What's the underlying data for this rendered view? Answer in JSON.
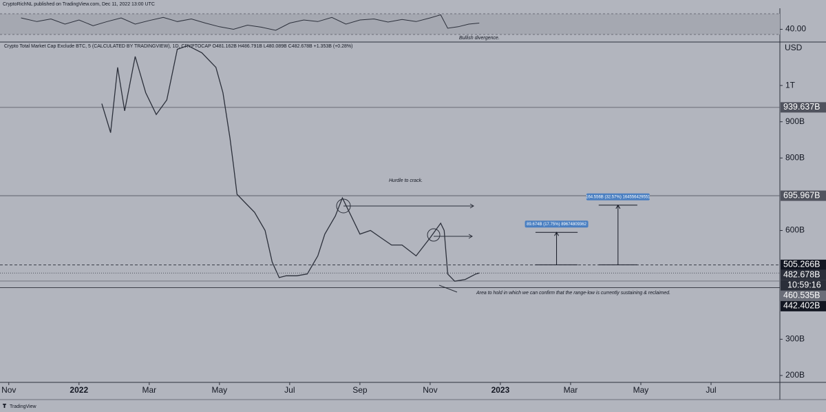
{
  "chart_data": {
    "type": "line",
    "publisher": "CryptoRichNL published on TradingView.com, Dec 11, 2022 13:00 UTC",
    "title": "Crypto Total Market Cap Exclude BTC, 5 (CALCULATED BY TRADINGVIEW), 1D, CRYPTOCAP  O481.162B H486.791B L480.089B C482.678B +1.353B (+0.28%)",
    "currency": "USD",
    "footer": "TradingView",
    "countdown": "10:59:16",
    "annotations": [
      "Bullish divergence.",
      "Hurdle to crack.",
      "Area to hold in which we can confirm that the range-low is currently sustaining & reclaimed."
    ],
    "series": [
      {
        "name": "Crypto Total Market Cap Exclude BTC",
        "color": "#2b2f3a",
        "x": [
          2.65,
          2.9,
          3.1,
          3.3,
          3.6,
          3.9,
          4.2,
          4.5,
          4.8,
          5.1,
          5.5,
          5.9,
          6.1,
          6.3,
          6.4,
          6.5,
          6.7,
          7.0,
          7.3,
          7.5,
          7.7,
          7.9,
          8.2,
          8.5,
          8.8,
          9.0,
          9.3,
          9.5,
          9.7,
          10.0,
          10.3,
          10.6,
          10.9,
          11.2,
          11.6,
          12.0,
          12.3,
          12.4,
          12.5,
          12.7,
          13.0,
          13.3,
          13.4
        ],
        "values": [
          950,
          870,
          1050,
          930,
          1080,
          980,
          920,
          960,
          1100,
          1110,
          1090,
          1050,
          980,
          855,
          780,
          700,
          680,
          650,
          600,
          513,
          470,
          475,
          475,
          480,
          530,
          590,
          640,
          690,
          650,
          590,
          600,
          580,
          560,
          560,
          530,
          580,
          620,
          600,
          480,
          460,
          465,
          480,
          482.678
        ]
      }
    ],
    "xlim": [
      -0.25,
      21.96
    ],
    "xticks": [
      {
        "value": 0,
        "label": "Nov"
      },
      {
        "value": 2,
        "label": "2022"
      },
      {
        "value": 4,
        "label": "Mar"
      },
      {
        "value": 6,
        "label": "May"
      },
      {
        "value": 8,
        "label": "Jul"
      },
      {
        "value": 10,
        "label": "Sep"
      },
      {
        "value": 12,
        "label": "Nov"
      },
      {
        "value": 14,
        "label": "2023"
      },
      {
        "value": 16,
        "label": "Mar"
      },
      {
        "value": 18,
        "label": "May"
      },
      {
        "value": 20,
        "label": "Jul"
      }
    ],
    "ylim": [
      181,
      1118
    ],
    "yticks": [
      {
        "value": 200,
        "label": "200B"
      },
      {
        "value": 300,
        "label": "300B"
      },
      {
        "value": 600,
        "label": "600B"
      },
      {
        "value": 800,
        "label": "800B"
      },
      {
        "value": 900,
        "label": "900B"
      },
      {
        "value": 1000,
        "label": "1T"
      }
    ],
    "levels": [
      {
        "value": 939.637,
        "label": "939.637B",
        "style": "solid",
        "color": "#50535e"
      },
      {
        "value": 695.967,
        "label": "695.967B",
        "style": "solid",
        "color": "#50535e"
      },
      {
        "value": 505.266,
        "label": "505.266B",
        "style": "dashed",
        "color": "#131722"
      },
      {
        "value": 482.678,
        "label": "482.678B",
        "style": "dotted",
        "color": "#2b2f3a"
      },
      {
        "value": 460.535,
        "label": "460.535B",
        "style": "solid",
        "color": "#6a6d78"
      },
      {
        "value": 442.402,
        "label": "442.402B",
        "style": "solid",
        "color": "#131722"
      }
    ],
    "measures": [
      {
        "label": "89.674B (17.75%) 89674809362",
        "value": 89.674,
        "x": [
          15.0,
          16.2
        ]
      },
      {
        "label": "164.556B (32.57%) 164556429551",
        "value": 164.556,
        "x": [
          16.8,
          17.9
        ]
      }
    ],
    "rsi": {
      "color": "#2b2f3a",
      "x": [
        0.35,
        0.8,
        1.2,
        1.6,
        2.0,
        2.4,
        2.8,
        3.2,
        3.6,
        4.0,
        4.4,
        4.8,
        5.2,
        5.6,
        6.0,
        6.4,
        6.8,
        7.2,
        7.6,
        8.0,
        8.4,
        8.8,
        9.2,
        9.6,
        10.0,
        10.4,
        10.8,
        11.2,
        11.6,
        12.0,
        12.3,
        12.5,
        12.8,
        13.1,
        13.4
      ],
      "values": [
        62,
        55,
        60,
        50,
        58,
        47,
        55,
        62,
        50,
        57,
        63,
        55,
        60,
        52,
        45,
        40,
        48,
        44,
        38,
        52,
        58,
        55,
        63,
        50,
        58,
        60,
        54,
        59,
        55,
        62,
        68,
        42,
        45,
        50,
        52
      ],
      "ylim": [
        16.7,
        80.7
      ],
      "bands": [
        70,
        30
      ],
      "ticks": [
        {
          "value": 40,
          "label": "40.00"
        }
      ]
    }
  }
}
